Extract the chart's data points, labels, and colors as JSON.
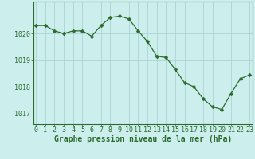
{
  "x": [
    0,
    1,
    2,
    3,
    4,
    5,
    6,
    7,
    8,
    9,
    10,
    11,
    12,
    13,
    14,
    15,
    16,
    17,
    18,
    19,
    20,
    21,
    22,
    23
  ],
  "y": [
    1020.3,
    1020.3,
    1020.1,
    1020.0,
    1020.1,
    1020.1,
    1019.9,
    1020.3,
    1020.6,
    1020.65,
    1020.55,
    1020.1,
    1019.7,
    1019.15,
    1019.1,
    1018.65,
    1018.15,
    1018.0,
    1017.55,
    1017.25,
    1017.15,
    1017.75,
    1018.3,
    1018.45
  ],
  "line_color": "#2d6a2d",
  "marker": "D",
  "marker_size": 2.5,
  "bg_color": "#cceeed",
  "grid_color": "#aad4d2",
  "ylabel_ticks": [
    1017,
    1018,
    1019,
    1020
  ],
  "xlabel_ticks": [
    0,
    1,
    2,
    3,
    4,
    5,
    6,
    7,
    8,
    9,
    10,
    11,
    12,
    13,
    14,
    15,
    16,
    17,
    18,
    19,
    20,
    21,
    22,
    23
  ],
  "xlabel_label": "Graphe pression niveau de la mer (hPa)",
  "ylim": [
    1016.6,
    1021.2
  ],
  "xlim": [
    -0.3,
    23.3
  ],
  "tick_color": "#2d6a2d",
  "label_color": "#2d6a2d",
  "label_fontsize": 7.0,
  "tick_fontsize": 6.0,
  "spine_color": "#2d6a2d"
}
